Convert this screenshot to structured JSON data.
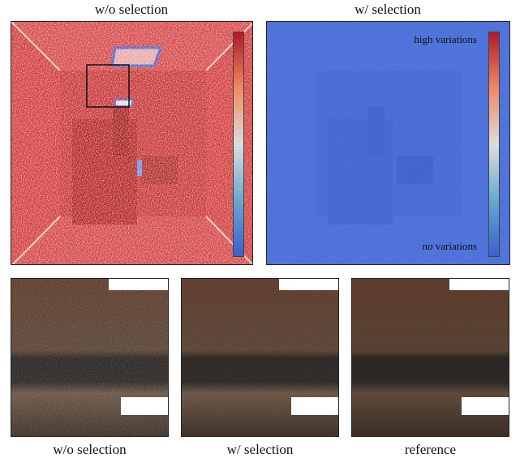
{
  "top": {
    "left_title": "w/o selection",
    "right_title": "w/ selection"
  },
  "colorbar": {
    "high_label": "high variations",
    "low_label": "no variations",
    "colors": [
      "#b2182b",
      "#ef8a62",
      "#dddddd",
      "#67a9cf",
      "#3b5fd1"
    ]
  },
  "bottom": {
    "captions": [
      "w/o selection",
      "w/ selection",
      "reference"
    ]
  },
  "colors": {
    "heat_red": "#cf3a3a",
    "heat_blue": "#4a6fd8",
    "crop_brown": "#5a4030",
    "crop_dark": "#2a2623",
    "crop_white": "#ffffff"
  }
}
